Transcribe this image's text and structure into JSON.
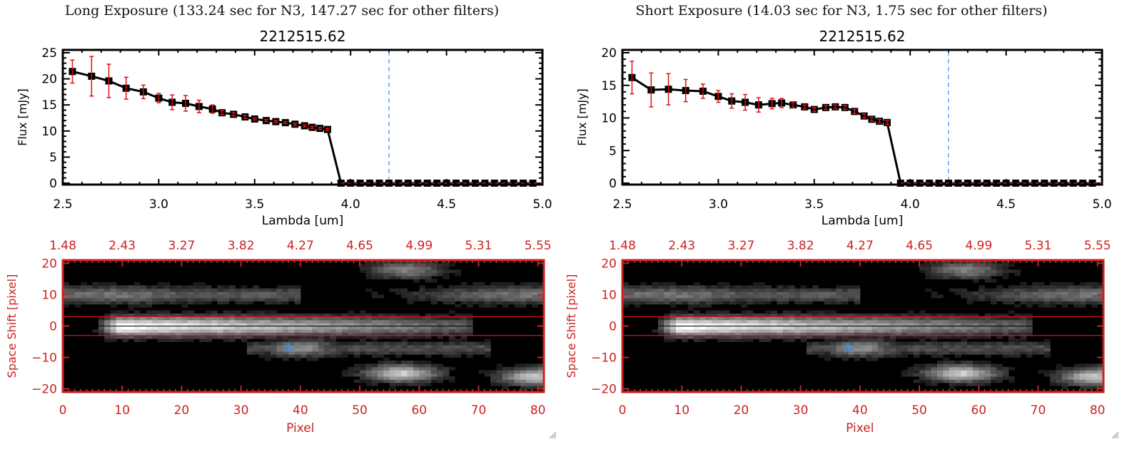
{
  "panels": [
    {
      "exposure_title": "Long Exposure (133.24 sec for N3, 147.27 sec for other filters)",
      "plot_title": "2212515.62",
      "spectrum": {
        "ylabel": "Flux [mJy]",
        "xlabel": "Lambda [um]",
        "xlim": [
          2.5,
          5.0
        ],
        "ylim": [
          0,
          25
        ],
        "xticks": [
          "2.5",
          "3.0",
          "3.5",
          "4.0",
          "4.5",
          "5.0"
        ],
        "yticks": [
          "0",
          "5",
          "10",
          "15",
          "20",
          "25"
        ]
      },
      "image": {
        "ylabel": "Space Shift [pixel]",
        "xlabel": "Pixel",
        "xticks": [
          "0",
          "10",
          "20",
          "30",
          "40",
          "50",
          "60",
          "70",
          "80"
        ],
        "yticks": [
          "-20",
          "-10",
          "0",
          "10",
          "20"
        ],
        "top_ticks": [
          "1.48",
          "2.43",
          "3.27",
          "3.82",
          "4.27",
          "4.65",
          "4.99",
          "5.31",
          "5.55"
        ]
      }
    },
    {
      "exposure_title": "Short Exposure (14.03 sec for N3, 1.75 sec for other filters)",
      "plot_title": "2212515.62",
      "spectrum": {
        "ylabel": "Flux [mJy]",
        "xlabel": "Lambda [um]",
        "xlim": [
          2.5,
          5.0
        ],
        "ylim": [
          0,
          20
        ],
        "xticks": [
          "2.5",
          "3.0",
          "3.5",
          "4.0",
          "4.5",
          "5.0"
        ],
        "yticks": [
          "0",
          "5",
          "10",
          "15",
          "20"
        ]
      },
      "image": {
        "ylabel": "Space Shift [pixel]",
        "xlabel": "Pixel",
        "xticks": [
          "0",
          "10",
          "20",
          "30",
          "40",
          "50",
          "60",
          "70",
          "80"
        ],
        "yticks": [
          "-20",
          "-10",
          "0",
          "10",
          "20"
        ],
        "top_ticks": [
          "1.48",
          "2.43",
          "3.27",
          "3.82",
          "4.27",
          "4.65",
          "4.99",
          "5.31",
          "5.55"
        ]
      }
    }
  ],
  "chart_data": [
    {
      "type": "line",
      "title": "2212515.62",
      "subtitle": "Long Exposure (133.24 sec for N3, 147.27 sec for other filters)",
      "xlabel": "Lambda [um]",
      "ylabel": "Flux [mJy]",
      "xlim": [
        2.5,
        5.0
      ],
      "ylim": [
        0,
        25
      ],
      "reference_line_x": 4.2,
      "x": [
        2.55,
        2.65,
        2.74,
        2.83,
        2.92,
        3.0,
        3.07,
        3.14,
        3.21,
        3.28,
        3.33,
        3.39,
        3.45,
        3.5,
        3.56,
        3.61,
        3.66,
        3.71,
        3.76,
        3.8,
        3.84,
        3.88,
        3.95,
        4.0,
        4.05,
        4.1,
        4.15,
        4.2,
        4.25,
        4.3,
        4.35,
        4.4,
        4.45,
        4.5,
        4.55,
        4.6,
        4.65,
        4.7,
        4.75,
        4.8,
        4.85,
        4.9,
        4.95
      ],
      "y": [
        21.4,
        20.5,
        19.6,
        18.2,
        17.5,
        16.3,
        15.5,
        15.3,
        14.7,
        14.2,
        13.5,
        13.2,
        12.7,
        12.3,
        12.0,
        11.8,
        11.6,
        11.3,
        11.0,
        10.7,
        10.5,
        10.3,
        0,
        0,
        0,
        0,
        0,
        0,
        0,
        0,
        0,
        0,
        0,
        0,
        0,
        0,
        0,
        0,
        0,
        0,
        0,
        0,
        0
      ],
      "yerr": [
        2.2,
        3.8,
        3.2,
        2.1,
        1.3,
        0.9,
        1.4,
        1.5,
        1.2,
        0.8,
        0.4,
        0.3,
        0.3,
        0.2,
        0.2,
        0.2,
        0.2,
        0.2,
        0.2,
        0.2,
        0.2,
        0.2,
        0,
        0,
        0,
        0,
        0,
        0,
        0,
        0,
        0,
        0,
        0,
        0,
        0,
        0,
        0,
        0,
        0,
        0,
        0,
        0,
        0
      ]
    },
    {
      "type": "line",
      "title": "2212515.62",
      "subtitle": "Short Exposure (14.03 sec for N3, 1.75 sec for other filters)",
      "xlabel": "Lambda [um]",
      "ylabel": "Flux [mJy]",
      "xlim": [
        2.5,
        5.0
      ],
      "ylim": [
        0,
        20
      ],
      "reference_line_x": 4.2,
      "x": [
        2.55,
        2.65,
        2.74,
        2.83,
        2.92,
        3.0,
        3.07,
        3.14,
        3.21,
        3.28,
        3.33,
        3.39,
        3.45,
        3.5,
        3.56,
        3.61,
        3.66,
        3.71,
        3.76,
        3.8,
        3.84,
        3.88,
        3.95,
        4.0,
        4.05,
        4.1,
        4.15,
        4.2,
        4.25,
        4.3,
        4.35,
        4.4,
        4.45,
        4.5,
        4.55,
        4.6,
        4.65,
        4.7,
        4.75,
        4.8,
        4.85,
        4.9,
        4.95
      ],
      "y": [
        16.2,
        14.3,
        14.4,
        14.2,
        14.1,
        13.3,
        12.6,
        12.4,
        12.0,
        12.2,
        12.3,
        12.0,
        11.7,
        11.3,
        11.6,
        11.7,
        11.6,
        11.0,
        10.3,
        9.8,
        9.5,
        9.3,
        0,
        0,
        0,
        0,
        0,
        0,
        0,
        0,
        0,
        0,
        0,
        0,
        0,
        0,
        0,
        0,
        0,
        0,
        0,
        0,
        0
      ],
      "yerr": [
        2.5,
        2.6,
        2.4,
        1.7,
        1.1,
        0.9,
        1.1,
        1.2,
        1.1,
        0.8,
        0.7,
        0.4,
        0.3,
        0.3,
        0.3,
        0.3,
        0.3,
        0.3,
        0.3,
        0.3,
        0.3,
        0.3,
        0,
        0,
        0,
        0,
        0,
        0,
        0,
        0,
        0,
        0,
        0,
        0,
        0,
        0,
        0,
        0,
        0,
        0,
        0,
        0,
        0
      ]
    },
    {
      "type": "heatmap",
      "xlabel": "Pixel",
      "ylabel": "Space Shift [pixel]",
      "xlim": [
        0,
        81
      ],
      "ylim": [
        -21,
        21
      ],
      "extraction_aperture": [
        -3,
        3
      ],
      "marker": {
        "symbol": "star",
        "x": 38,
        "y": -7,
        "color": "#3a8ee6"
      },
      "sources": [
        {
          "x": 11,
          "y": 0,
          "intensity": 1.0,
          "note": "main trace extends to ~x=68"
        },
        {
          "x": 8,
          "y": 10,
          "intensity": 0.45
        },
        {
          "x": 57,
          "y": -15,
          "intensity": 0.8
        },
        {
          "x": 80,
          "y": -16,
          "intensity": 0.8
        },
        {
          "x": 40,
          "y": -7,
          "intensity": 0.55
        },
        {
          "x": 58,
          "y": 18,
          "intensity": 0.5
        },
        {
          "x": 79,
          "y": 10,
          "intensity": 0.45
        }
      ]
    }
  ],
  "colors": {
    "axis_red": "#cc2222",
    "errorbar_red": "#e01010",
    "dashed_blue": "#3a8ee6",
    "marker_black": "#000000"
  }
}
